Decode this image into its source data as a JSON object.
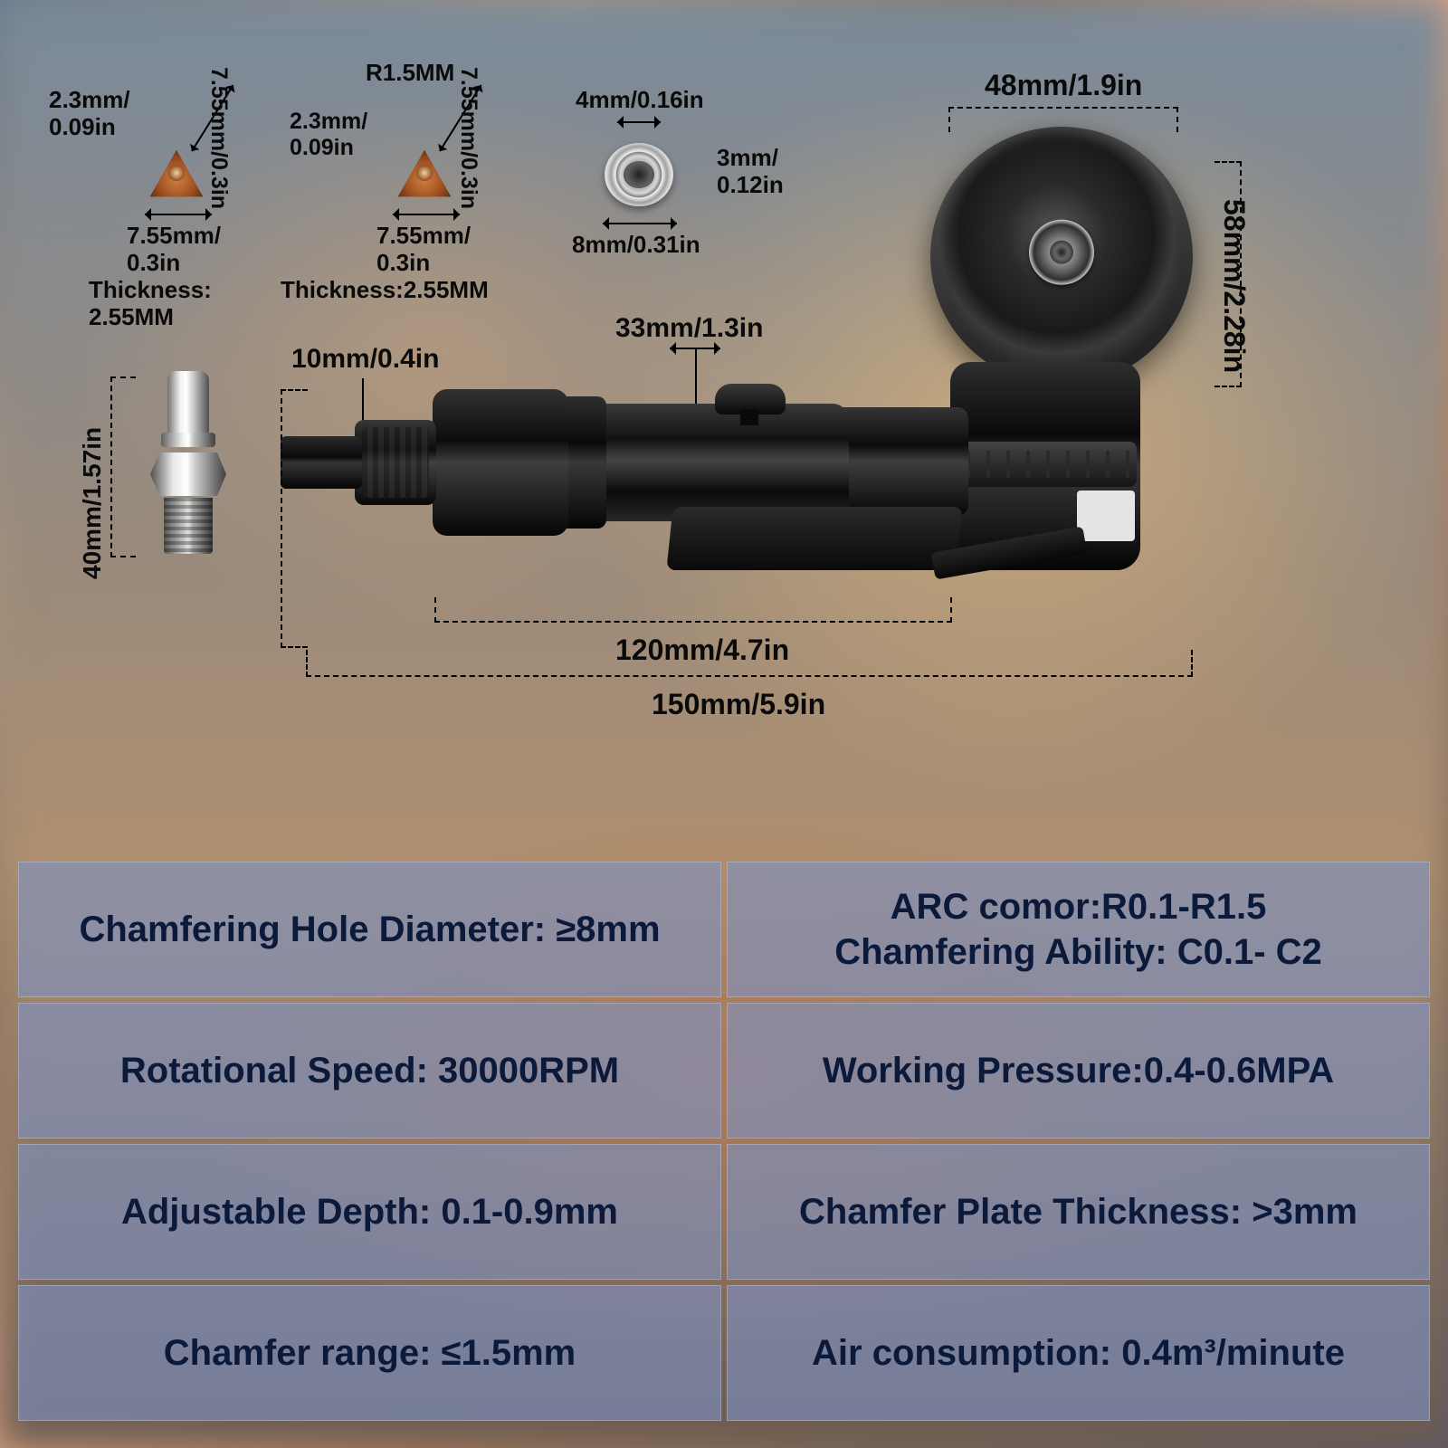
{
  "dims": {
    "insert1_side_left": "2.3mm/\n0.09in",
    "insert1_diag": "7.55mm/0.3in",
    "insert1_base": "7.55mm/\n0.3in",
    "insert1_thick": "Thickness:\n2.55MM",
    "insert2_radius": "R1.5MM",
    "insert2_side_left": "2.3mm/\n0.09in",
    "insert2_diag": "7.55mm/0.3in",
    "insert2_base": "7.55mm/\n0.3in",
    "insert2_thick": "Thickness:2.55MM",
    "bearing_top": "4mm/0.16in",
    "bearing_right": "3mm/\n0.12in",
    "bearing_bottom": "8mm/0.31in",
    "disc_top": "48mm/1.9in",
    "disc_right": "58mm/2.28in",
    "tool_mid_top": "33mm/1.3in",
    "tool_inlet": "10mm/0.4in",
    "tool_body_len": "120mm/4.7in",
    "tool_total_len": "150mm/5.9in",
    "connector_height": "40mm/1.57in"
  },
  "specs": [
    [
      "Chamfering Hole Diameter: ≥8mm",
      "ARC comor:R0.1-R1.5\nChamfering Ability: C0.1- C2"
    ],
    [
      "Rotational Speed: 30000RPM",
      "Working Pressure:0.4-0.6MPA"
    ],
    [
      "Adjustable Depth: 0.1-0.9mm",
      "Chamfer Plate Thickness: >3mm"
    ],
    [
      "Chamfer range: ≤1.5mm",
      "Air consumption: 0.4m³/minute"
    ]
  ],
  "colors": {
    "table_cell_bg": "rgba(125,145,195,0.62)",
    "table_text": "#0b1a3a",
    "dim_text": "#0a0a0a"
  }
}
